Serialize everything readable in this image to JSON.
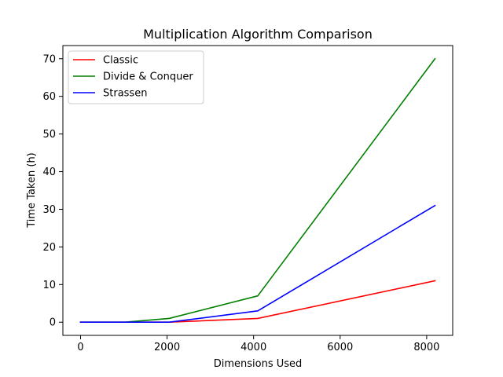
{
  "chart_data": {
    "type": "line",
    "title": "Multiplication Algorithm Comparison",
    "xlabel": "Dimensions Used",
    "ylabel": "Time Taken (h)",
    "x": [
      1,
      1024,
      2048,
      4096,
      8192
    ],
    "series": [
      {
        "name": "Classic",
        "color": "#ff0000",
        "values": [
          0,
          0,
          0,
          1,
          11
        ]
      },
      {
        "name": "Divide & Conquer",
        "color": "#008000",
        "values": [
          0,
          0,
          1,
          7,
          70
        ]
      },
      {
        "name": "Strassen",
        "color": "#0000ff",
        "values": [
          0,
          0,
          0,
          3,
          31
        ]
      }
    ],
    "xlim": [
      -408.55,
      8601.55
    ],
    "ylim": [
      -3.5,
      73.5
    ],
    "xticks": [
      0,
      2000,
      4000,
      6000,
      8000
    ],
    "yticks": [
      0,
      10,
      20,
      30,
      40,
      50,
      60,
      70
    ],
    "legend_position": "top-left",
    "grid": false
  }
}
